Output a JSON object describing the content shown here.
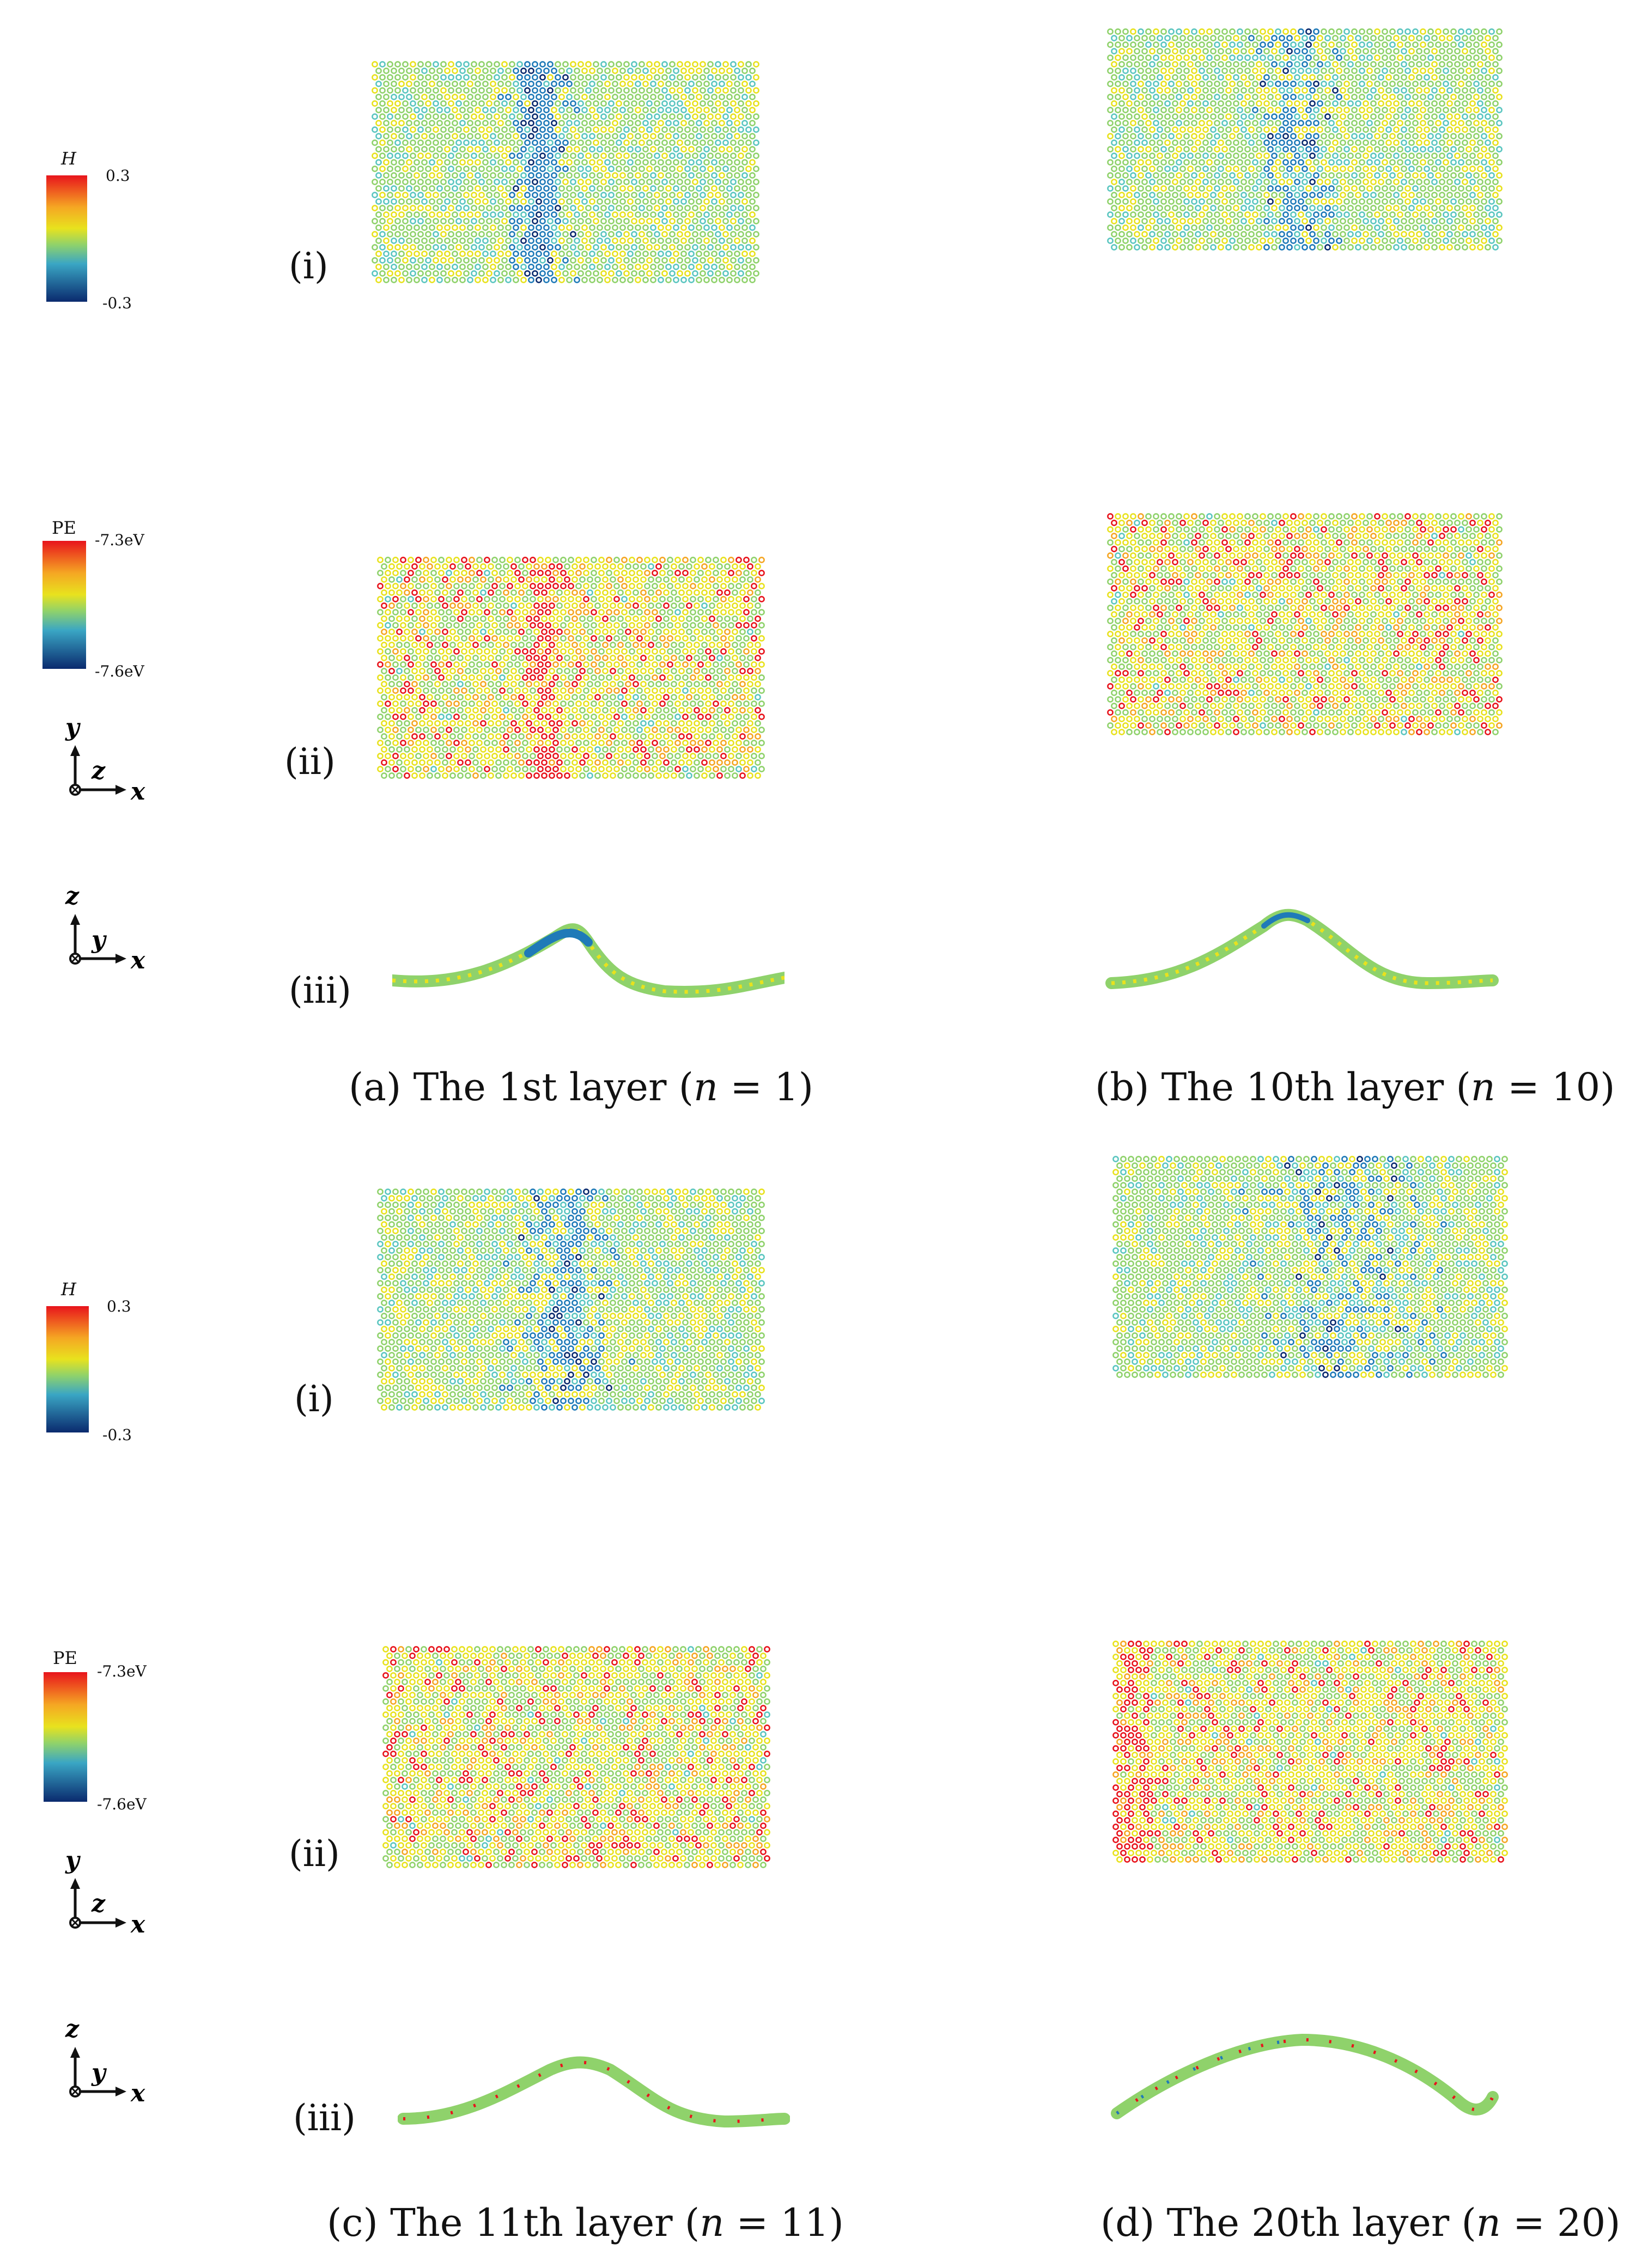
{
  "figure": {
    "panels": [
      {
        "id": "a",
        "caption_prefix": "(a) The 1st layer (",
        "caption_var": "n",
        "caption_suffix": " = 1)"
      },
      {
        "id": "b",
        "caption_prefix": "(b) The 10th layer (",
        "caption_var": "n",
        "caption_suffix": " = 10)"
      },
      {
        "id": "c",
        "caption_prefix": "(c) The 11th layer (",
        "caption_var": "n",
        "caption_suffix": " = 11)"
      },
      {
        "id": "d",
        "caption_prefix": "(d) The 20th layer (",
        "caption_var": "n",
        "caption_suffix": " = 20)"
      }
    ],
    "row_labels": {
      "i": "(i)",
      "ii": "(ii)",
      "iii": "(iii)"
    },
    "colorbars": {
      "H": {
        "label": "H",
        "max": "0.3",
        "min": "-0.3"
      },
      "PE": {
        "label": "PE",
        "max": "-7.3eV",
        "min": "-7.6eV"
      }
    },
    "axes": {
      "xy": {
        "up": "y",
        "out": "z",
        "right": "x"
      },
      "xz": {
        "up": "z",
        "out": "y",
        "right": "x"
      }
    }
  },
  "colors": {
    "red": "#e8141c",
    "orange": "#f5a623",
    "yellow": "#e8e21e",
    "green": "#8fd26b",
    "cyan": "#5bc6c0",
    "blue": "#1f7ab8",
    "navy": "#0a2a6e"
  }
}
